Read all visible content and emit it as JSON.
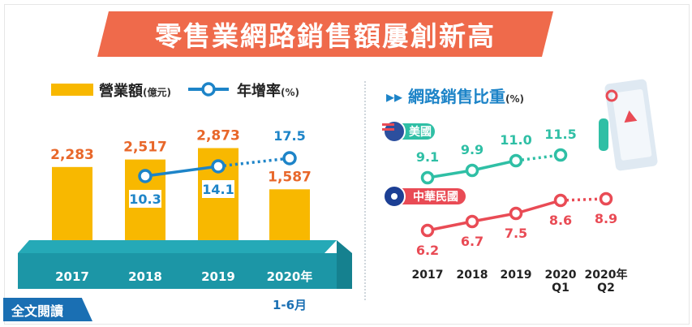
{
  "title": "零售業網路銷售額屢創新高",
  "full_text_label": "全文閱讀",
  "colors": {
    "banner": "#ef6a4b",
    "bar": "#f8b800",
    "growth_line": "#1d84c8",
    "us_line": "#2fbfa5",
    "tw_line": "#e94b55",
    "base_band": "#1c96a6"
  },
  "left_legend": {
    "bar_label": "營業額",
    "bar_unit": "(億元)",
    "line_label": "年增率",
    "line_unit": "(%)"
  },
  "right_header": {
    "label": "網路銷售比重",
    "unit": "(%)"
  },
  "chart_data": [
    {
      "type": "bar",
      "categories": [
        "2017",
        "2018",
        "2019",
        "2020年"
      ],
      "category_sublabels": [
        "",
        "",
        "",
        "1-6月"
      ],
      "series": [
        {
          "name": "營業額",
          "unit": "億元",
          "values": [
            2283,
            2517,
            2873,
            1587
          ],
          "labels": [
            "2,283",
            "2,517",
            "2,873",
            "1,587"
          ]
        },
        {
          "name": "年增率",
          "unit": "%",
          "type": "line",
          "values": [
            null,
            10.3,
            14.1,
            17.5
          ],
          "labels": [
            "",
            "10.3",
            "14.1",
            "17.5"
          ],
          "dotted_last_segment": true
        }
      ]
    },
    {
      "type": "line",
      "categories": [
        "2017",
        "2018",
        "2019",
        "2020",
        "2020年"
      ],
      "category_sublabels": [
        "",
        "",
        "",
        "Q1",
        "Q2"
      ],
      "series": [
        {
          "name": "美國",
          "icon": "us-flag-icon",
          "values": [
            9.1,
            9.9,
            11.0,
            11.5,
            null
          ],
          "labels": [
            "9.1",
            "9.9",
            "11.0",
            "11.5",
            ""
          ],
          "dotted_last_segment": true
        },
        {
          "name": "中華民國",
          "icon": "roc-flag-icon",
          "values": [
            6.2,
            6.7,
            7.5,
            8.6,
            8.9
          ],
          "labels": [
            "6.2",
            "6.7",
            "7.5",
            "8.6",
            "8.9"
          ],
          "dotted_from_index": 3
        }
      ]
    }
  ]
}
